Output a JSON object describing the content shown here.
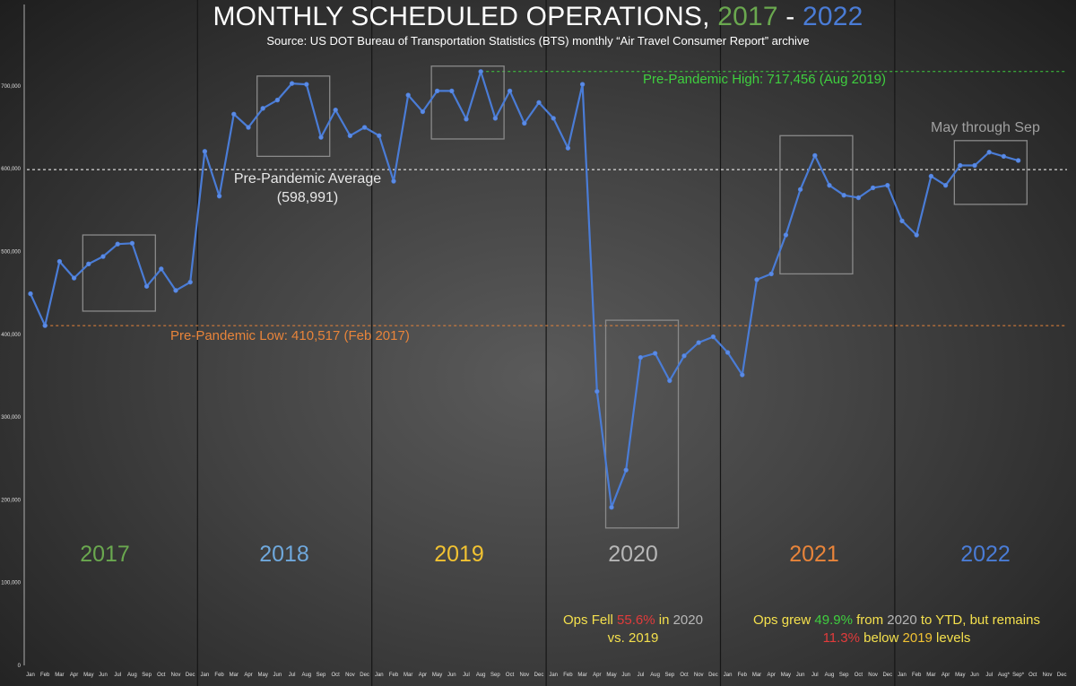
{
  "title": {
    "prefix": "MONTHLY SCHEDULED OPERATIONS, ",
    "year_start": "2017",
    "dash": " - ",
    "year_end": "2022"
  },
  "subtitle": "Source: US DOT Bureau of Transportation Statistics (BTS) monthly “Air Travel Consumer Report” archive",
  "colors": {
    "line": "#4a7cd6",
    "green": "#3fcf3f",
    "orange": "#e8843a",
    "white_dash": "#ffffff",
    "box": "#8a8a8a",
    "y2017": "#6aa84f",
    "y2018": "#6fa8dc",
    "y2019": "#f1c232",
    "y2020": "#b7b7b7",
    "y2021": "#e8843a",
    "y2022": "#4a7cd6",
    "yellow": "#f4e04d",
    "red": "#e23b3b"
  },
  "annotations": {
    "high": "Pre-Pandemic High: 717,456 (Aug 2019)",
    "avg_line1": "Pre-Pandemic Average",
    "avg_line2": "(598,991)",
    "low": "Pre-Pandemic Low: 410,517 (Feb 2017)",
    "may_sep": "May through Sep",
    "note2020": {
      "p1": "Ops Fell ",
      "pct": "55.6%",
      "p2": " in ",
      "yr": "2020",
      "line2": "vs. 2019"
    },
    "note2022": {
      "p1": "Ops grew ",
      "pct": "49.9%",
      "p2": " from ",
      "yr": "2020",
      "p3": " to YTD, but remains",
      "pct2": "11.3%",
      "p4": " below ",
      "yr2": "2019",
      "p5": " levels"
    }
  },
  "chart_data": {
    "type": "line",
    "title": "MONTHLY SCHEDULED OPERATIONS, 2017 - 2022",
    "xlabel": "",
    "ylabel": "",
    "ylim": [
      0,
      750000
    ],
    "yticks": [
      0,
      100000,
      200000,
      300000,
      400000,
      500000,
      600000,
      700000
    ],
    "ytick_labels": [
      "0",
      "100,000",
      "200,000",
      "300,000",
      "400,000",
      "500,000",
      "600,000",
      "700,000"
    ],
    "years": [
      "2017",
      "2018",
      "2019",
      "2020",
      "2021",
      "2022"
    ],
    "month_labels": [
      "Jan",
      "Feb",
      "Mar",
      "Apr",
      "May",
      "Jun",
      "Jul",
      "Aug",
      "Sep",
      "Oct",
      "Nov",
      "Dec"
    ],
    "month_labels_2022": [
      "Jan",
      "Feb",
      "Mar",
      "Apr",
      "May",
      "Jun",
      "Jul",
      "Aug*",
      "Sep*",
      "Oct",
      "Nov",
      "Dec"
    ],
    "grid": false,
    "series": [
      {
        "values": [
          449000,
          410517,
          488000,
          468000,
          485000,
          494000,
          509000,
          510000,
          458000,
          479000,
          453000,
          463000,
          621000,
          567000,
          666000,
          650000,
          673000,
          683000,
          703000,
          702000,
          638000,
          671000,
          640000,
          650000,
          640000,
          585000,
          689000,
          669000,
          694000,
          694000,
          660000,
          717456,
          661000,
          694000,
          655000,
          680000,
          661000,
          625000,
          702000,
          331000,
          191000,
          236000,
          372000,
          377000,
          344000,
          374000,
          390000,
          397000,
          378000,
          351000,
          466000,
          473000,
          520000,
          575000,
          616000,
          580000,
          568000,
          565000,
          577000,
          580000,
          537000,
          520000,
          591000,
          580000,
          604000,
          604000,
          620000,
          615000,
          610000
        ]
      }
    ],
    "reference_lines": [
      {
        "label": "Pre-Pandemic High",
        "value": 717456
      },
      {
        "label": "Pre-Pandemic Average",
        "value": 598991
      },
      {
        "label": "Pre-Pandemic Low",
        "value": 410517
      }
    ]
  }
}
